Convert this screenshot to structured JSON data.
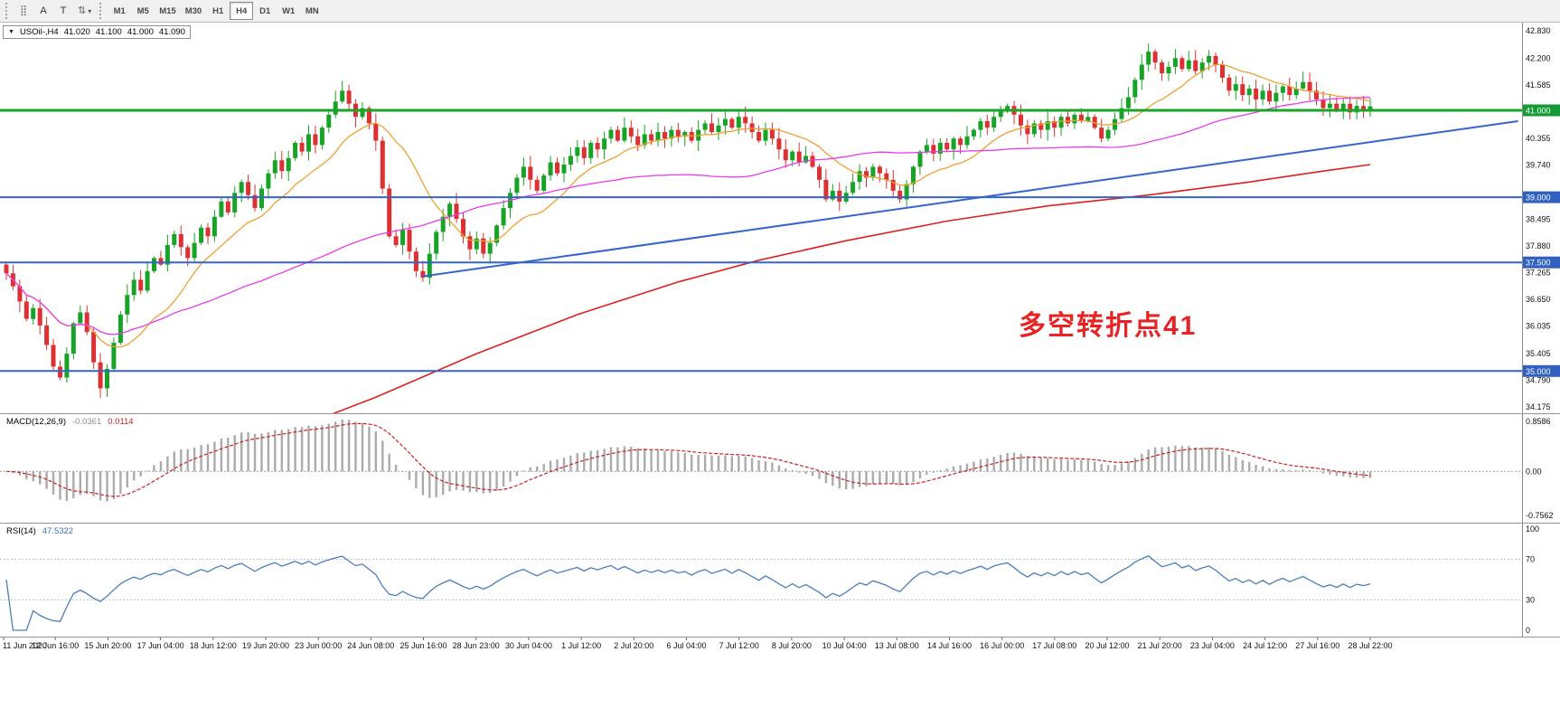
{
  "toolbar": {
    "tool_a": "A",
    "tool_t": "T",
    "dropdown_caret": "▾",
    "timeframes": [
      "M1",
      "M5",
      "M15",
      "M30",
      "H1",
      "H4",
      "D1",
      "W1",
      "MN"
    ],
    "active_timeframe": "H4"
  },
  "chart": {
    "title": {
      "expander": "▼",
      "symbol": "USOil-,H4",
      "open": "41.020",
      "high": "41.100",
      "low": "41.000",
      "close": "41.090"
    },
    "annotation": {
      "text": "多空转折点41",
      "color": "#e62424"
    },
    "price_axis": {
      "labels": [
        "42.830",
        "42.200",
        "41.585",
        "40.355",
        "39.740",
        "38.495",
        "37.880",
        "37.265",
        "36.650",
        "36.035",
        "35.405",
        "34.790",
        "34.175"
      ],
      "badges": [
        {
          "label": "41.000",
          "price": 41.0,
          "bg": "#149b35"
        },
        {
          "label": "39.000",
          "price": 39.0,
          "bg": "#3060c0"
        },
        {
          "label": "37.500",
          "price": 37.5,
          "bg": "#3060c0"
        },
        {
          "label": "35.000",
          "price": 35.0,
          "bg": "#3060c0"
        }
      ]
    },
    "hlines": [
      {
        "price": 41.0,
        "color": "#1da32a",
        "w": 3
      },
      {
        "price": 39.0,
        "color": "#3465c8",
        "w": 2
      },
      {
        "price": 37.5,
        "color": "#3465c8",
        "w": 2
      },
      {
        "price": 35.0,
        "color": "#3465c8",
        "w": 2
      }
    ],
    "trendline": {
      "b1": 62,
      "p1": 37.18,
      "b2": 225,
      "p2": 40.75,
      "color": "#3465c8",
      "w": 2
    },
    "time_axis": [
      "11 Jun 2020",
      "12 Jun 16:00",
      "15 Jun 20:00",
      "17 Jun 04:00",
      "18 Jun 12:00",
      "19 Jun 20:00",
      "23 Jun 00:00",
      "24 Jun 08:00",
      "25 Jun 16:00",
      "28 Jun 23:00",
      "30 Jun 04:00",
      "1 Jul 12:00",
      "2 Jul 20:00",
      "6 Jul 04:00",
      "7 Jul 12:00",
      "8 Jul 20:00",
      "10 Jul 04:00",
      "13 Jul 08:00",
      "14 Jul 16:00",
      "16 Jul 00:00",
      "17 Jul 08:00",
      "20 Jul 12:00",
      "21 Jul 20:00",
      "23 Jul 04:00",
      "24 Jul 12:00",
      "27 Jul 16:00",
      "28 Jul 22:00"
    ]
  },
  "macd": {
    "title": "MACD(12,26,9)",
    "value_main": "-0.0361",
    "value_signal": "0.0114",
    "scale": {
      "max": "0.8586",
      "zero": "0.00",
      "min": "-0.7562"
    }
  },
  "rsi": {
    "title": "RSI(14)",
    "value": "47.5322",
    "scale": [
      "100",
      "70",
      "30",
      "0"
    ],
    "scale_values": [
      100,
      70,
      30,
      0
    ],
    "levels": [
      70,
      30
    ]
  },
  "chart_data": {
    "type": "candlestick",
    "symbol": "USOil-",
    "timeframe": "H4",
    "last_ohlc": {
      "open": 41.02,
      "high": 41.1,
      "low": 41.0,
      "close": 41.09
    },
    "ylim": [
      34.175,
      42.83
    ],
    "open_first": 37.45,
    "closes": [
      37.25,
      36.95,
      36.6,
      36.2,
      36.45,
      36.05,
      35.6,
      35.1,
      34.85,
      35.4,
      36.1,
      36.35,
      35.9,
      35.2,
      34.6,
      35.05,
      35.65,
      36.3,
      36.75,
      37.1,
      36.85,
      37.3,
      37.6,
      37.45,
      37.9,
      38.15,
      37.85,
      37.6,
      37.95,
      38.3,
      38.1,
      38.55,
      38.9,
      38.65,
      39.1,
      39.35,
      39.05,
      38.75,
      39.2,
      39.55,
      39.85,
      39.6,
      39.9,
      40.25,
      40.05,
      40.45,
      40.2,
      40.6,
      40.9,
      41.2,
      41.45,
      41.15,
      40.85,
      41.05,
      40.7,
      40.3,
      39.2,
      38.1,
      37.9,
      38.25,
      37.75,
      37.3,
      37.15,
      37.7,
      38.2,
      38.55,
      38.85,
      38.5,
      38.1,
      37.8,
      38.05,
      37.7,
      37.95,
      38.35,
      38.75,
      39.1,
      39.45,
      39.7,
      39.4,
      39.15,
      39.5,
      39.8,
      39.55,
      39.75,
      39.95,
      40.15,
      39.9,
      40.25,
      40.1,
      40.35,
      40.55,
      40.3,
      40.6,
      40.4,
      40.2,
      40.45,
      40.3,
      40.5,
      40.35,
      40.55,
      40.4,
      40.5,
      40.3,
      40.55,
      40.7,
      40.5,
      40.65,
      40.8,
      40.6,
      40.85,
      40.7,
      40.5,
      40.3,
      40.55,
      40.35,
      40.1,
      39.85,
      40.05,
      39.8,
      39.95,
      39.7,
      39.4,
      38.95,
      39.15,
      38.9,
      39.1,
      39.35,
      39.6,
      39.45,
      39.7,
      39.55,
      39.4,
      39.15,
      38.95,
      39.3,
      39.7,
      40.05,
      40.2,
      40.0,
      40.25,
      40.1,
      40.35,
      40.2,
      40.4,
      40.55,
      40.75,
      40.6,
      40.85,
      41.0,
      41.1,
      40.9,
      40.65,
      40.45,
      40.7,
      40.55,
      40.75,
      40.6,
      40.85,
      40.7,
      40.9,
      40.75,
      40.85,
      40.6,
      40.35,
      40.55,
      40.8,
      41.05,
      41.3,
      41.7,
      42.05,
      42.35,
      42.1,
      41.85,
      42.0,
      42.2,
      41.95,
      42.15,
      41.9,
      42.1,
      42.25,
      42.05,
      41.75,
      41.45,
      41.6,
      41.35,
      41.5,
      41.25,
      41.45,
      41.2,
      41.4,
      41.55,
      41.35,
      41.5,
      41.65,
      41.45,
      41.25,
      41.05,
      41.15,
      41.0,
      41.15,
      40.95,
      41.1,
      41.02,
      41.09
    ],
    "overlays": {
      "sma_fast_period": 13,
      "sma_mid_period": 55,
      "ma_red_points": [
        [
          40,
          33.5
        ],
        [
          55,
          34.4
        ],
        [
          70,
          35.4
        ],
        [
          85,
          36.3
        ],
        [
          100,
          37.05
        ],
        [
          112,
          37.55
        ],
        [
          125,
          38.0
        ],
        [
          140,
          38.45
        ],
        [
          155,
          38.8
        ],
        [
          170,
          39.05
        ],
        [
          185,
          39.35
        ],
        [
          196,
          39.6
        ],
        [
          203,
          39.75
        ]
      ]
    },
    "colors": {
      "bull": "#17a325",
      "bear": "#dd3032",
      "ma_fast": "#f0a030",
      "ma_mid": "#e83ce8",
      "ma_slow": "#dc2020",
      "macd_hist": "#ababab",
      "macd_signal": "#cc2020",
      "rsi": "#4a7ebb"
    }
  }
}
